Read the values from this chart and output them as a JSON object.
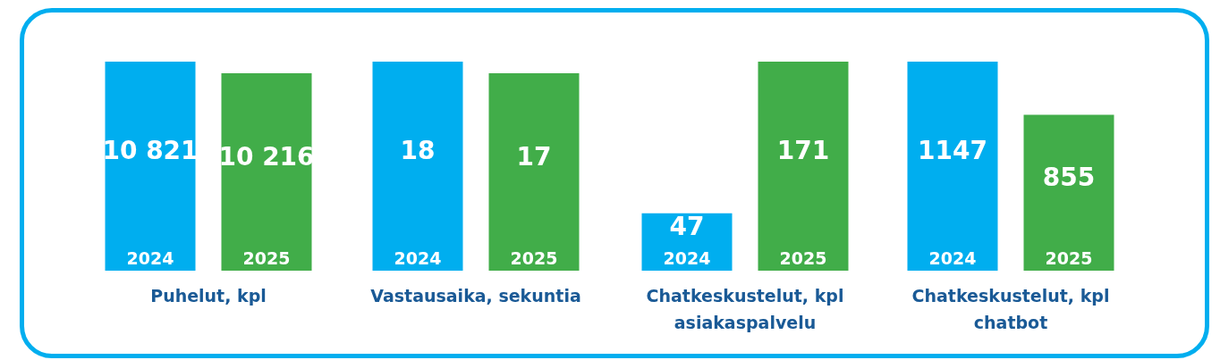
{
  "chart_data": [
    {
      "type": "bar",
      "xlabel": "Puhelut, kpl",
      "categories": [
        "2024",
        "2025"
      ],
      "values": [
        10821,
        10216
      ],
      "colors": [
        "#00aeef",
        "#41ad49"
      ],
      "value_labels": [
        "10 821",
        "10 216"
      ],
      "tick_labels": "x"
    },
    {
      "type": "bar",
      "xlabel": "Vastausaika, sekuntia",
      "categories": [
        "2024",
        "2025"
      ],
      "values": [
        18,
        17
      ],
      "colors": [
        "#00aeef",
        "#41ad49"
      ],
      "value_labels": [
        "18",
        "17"
      ],
      "tick_labels": "x"
    },
    {
      "type": "bar",
      "xlabel": "Chatkeskustelut, kpl\nasiakaspalvelu",
      "categories": [
        "2024",
        "2025"
      ],
      "values": [
        47,
        171
      ],
      "colors": [
        "#00aeef",
        "#41ad49"
      ],
      "value_labels": [
        "47",
        "171"
      ],
      "tick_labels": "x"
    },
    {
      "type": "bar",
      "xlabel": "Chatkeskustelut, kpl\nchatbot",
      "categories": [
        "2024",
        "2025"
      ],
      "values": [
        1147,
        855
      ],
      "colors": [
        "#00aeef",
        "#41ad49"
      ],
      "value_labels": [
        "1147",
        "855"
      ],
      "tick_labels": "x"
    }
  ]
}
